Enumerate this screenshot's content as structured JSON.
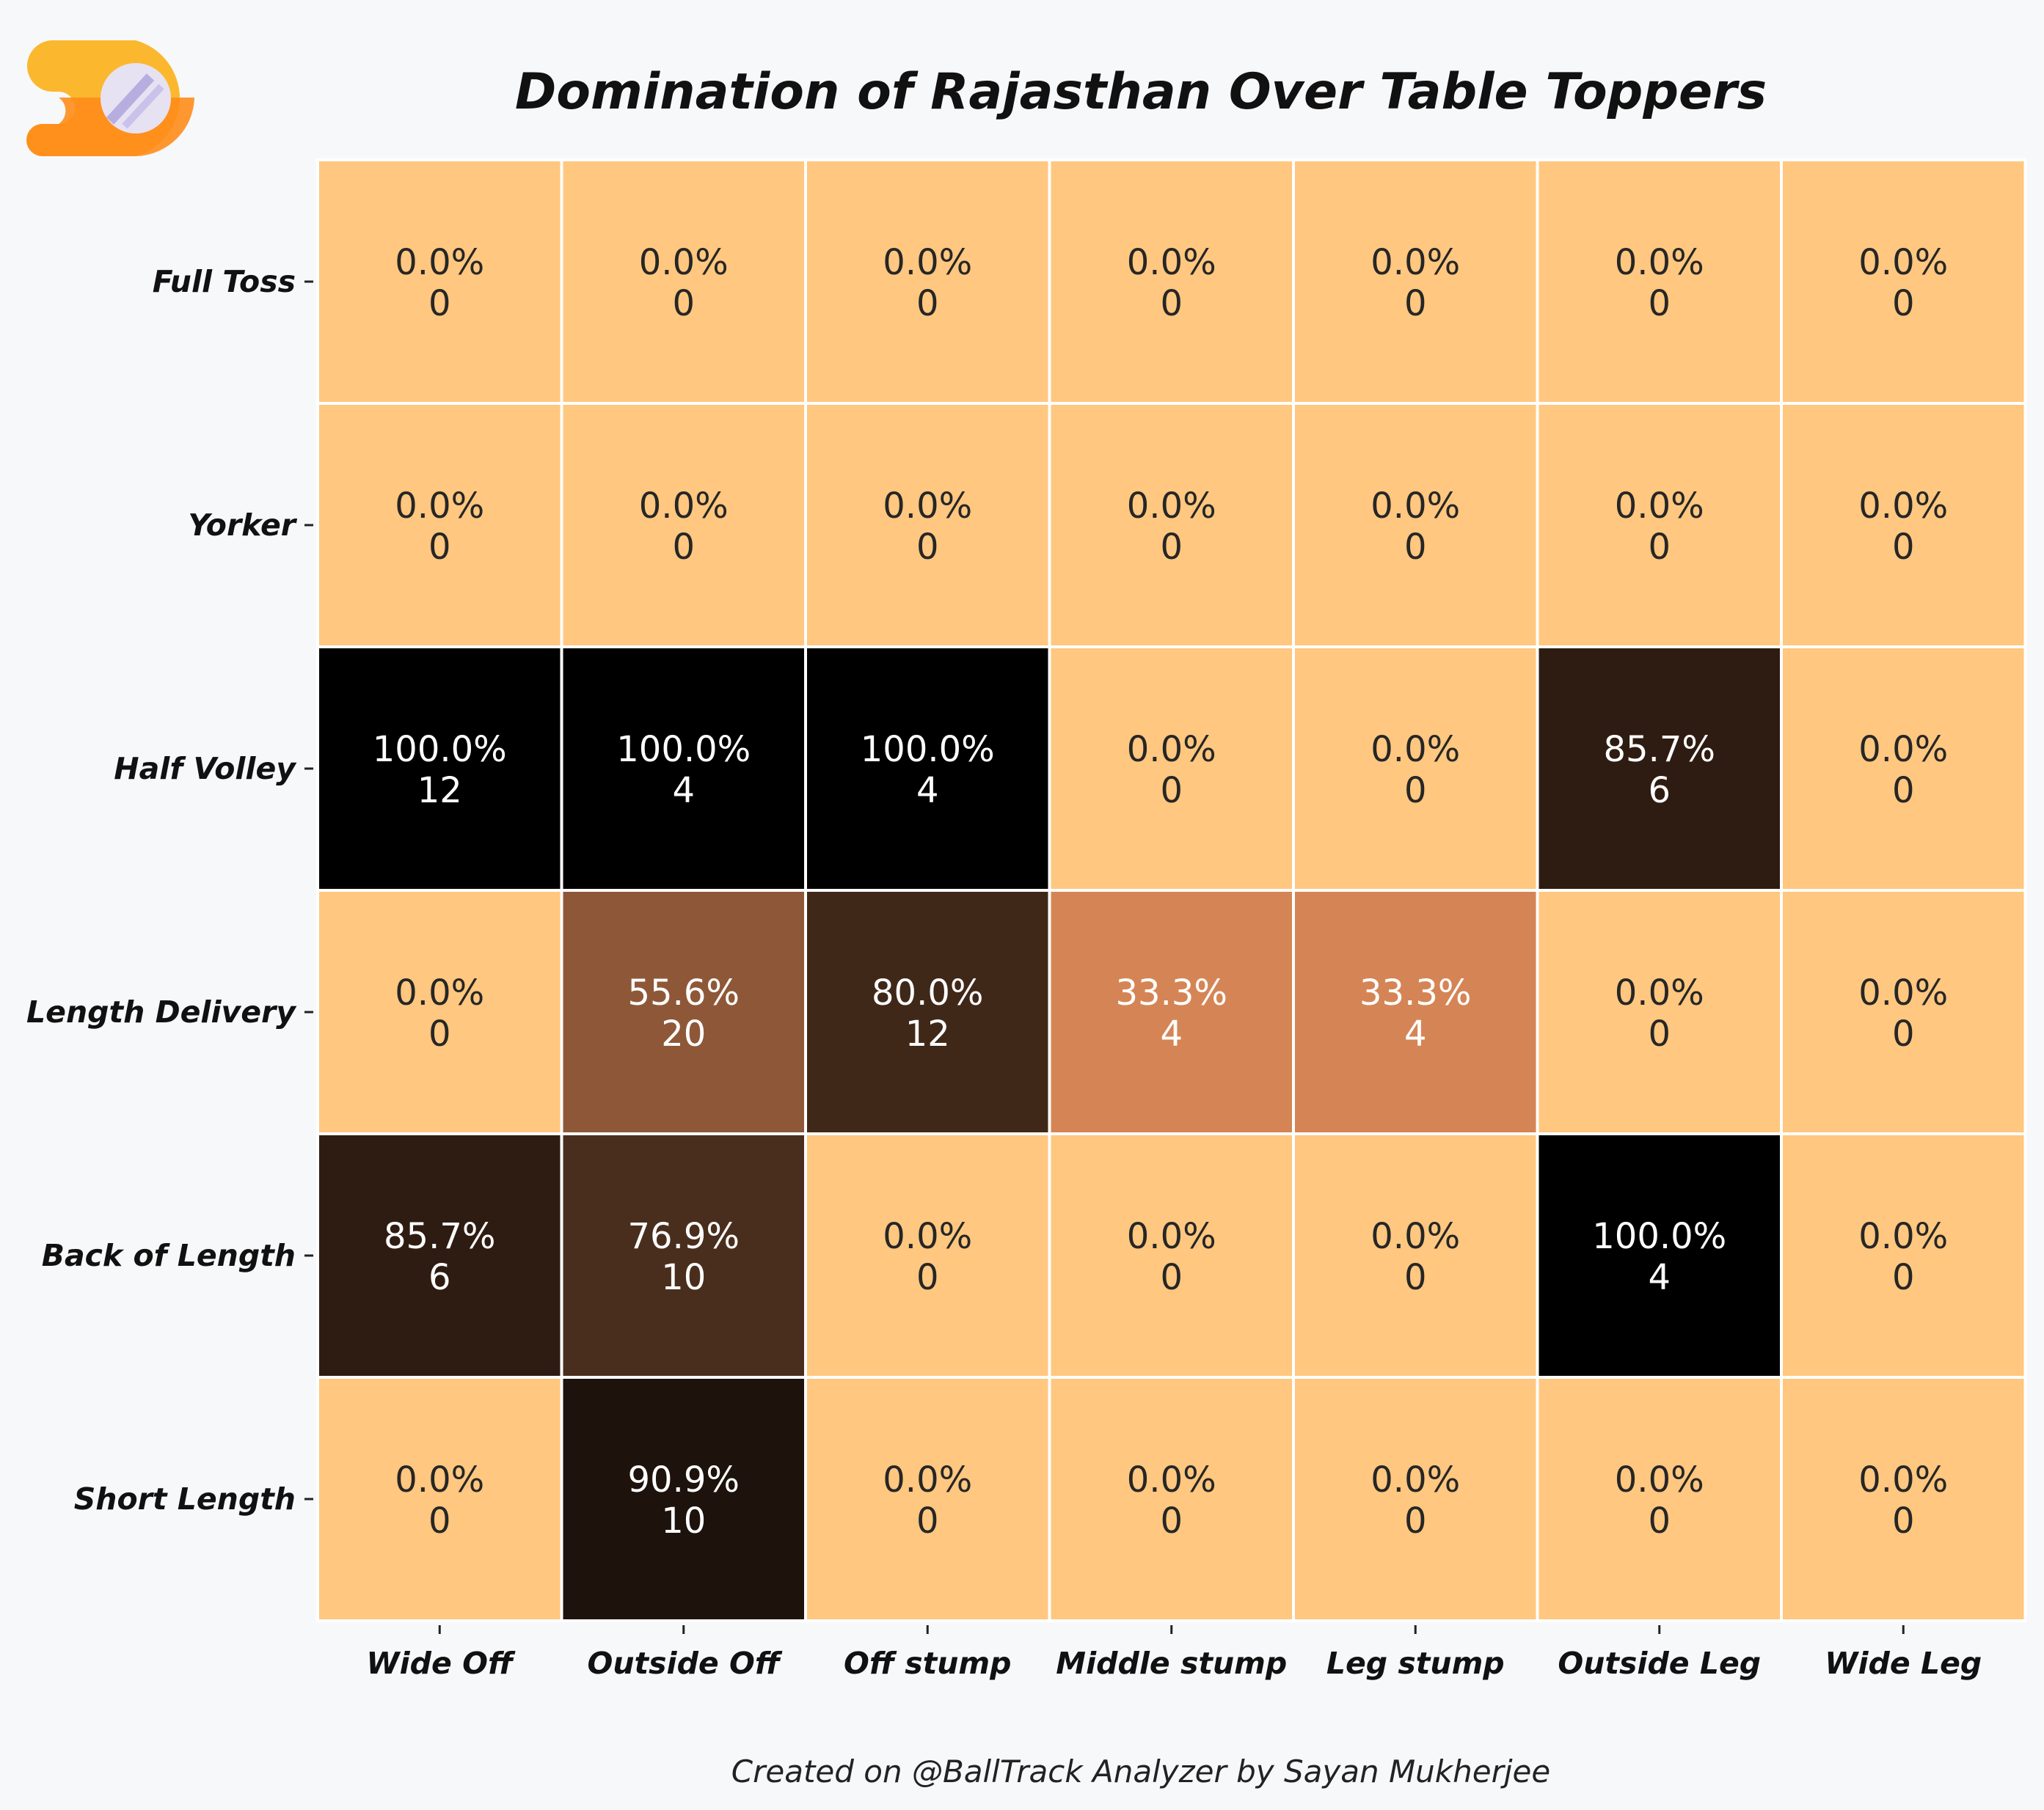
{
  "chart_data": {
    "type": "heatmap",
    "title": "Domination of Rajasthan Over Table Toppers",
    "xlabel": "",
    "ylabel": "",
    "x_categories": [
      "Wide Off",
      "Outside Off",
      "Off stump",
      "Middle stump",
      "Leg stump",
      "Outside Leg",
      "Wide Leg"
    ],
    "y_categories": [
      "Full Toss",
      "Yorker",
      "Half Volley",
      "Length Delivery",
      "Back of Length",
      "Short Length"
    ],
    "percent_values": [
      [
        0.0,
        0.0,
        0.0,
        0.0,
        0.0,
        0.0,
        0.0
      ],
      [
        0.0,
        0.0,
        0.0,
        0.0,
        0.0,
        0.0,
        0.0
      ],
      [
        100.0,
        100.0,
        100.0,
        0.0,
        0.0,
        85.7,
        0.0
      ],
      [
        0.0,
        55.6,
        80.0,
        33.3,
        33.3,
        0.0,
        0.0
      ],
      [
        85.7,
        76.9,
        0.0,
        0.0,
        0.0,
        100.0,
        0.0
      ],
      [
        0.0,
        90.9,
        0.0,
        0.0,
        0.0,
        0.0,
        0.0
      ]
    ],
    "count_values": [
      [
        0,
        0,
        0,
        0,
        0,
        0,
        0
      ],
      [
        0,
        0,
        0,
        0,
        0,
        0,
        0
      ],
      [
        12,
        4,
        4,
        0,
        0,
        6,
        0
      ],
      [
        0,
        20,
        12,
        4,
        4,
        0,
        0
      ],
      [
        6,
        10,
        0,
        0,
        0,
        4,
        0
      ],
      [
        0,
        10,
        0,
        0,
        0,
        0,
        0
      ]
    ],
    "colorscale": "copper_r",
    "colors": {
      "low": "#ffc680",
      "high": "#000000",
      "background": "#f7f8fa"
    },
    "grid": true,
    "legend": "none"
  },
  "footer": "Created on @BallTrack Analyzer by Sayan Mukherjee",
  "logo": {
    "icon": "balltrack-logo-icon"
  }
}
